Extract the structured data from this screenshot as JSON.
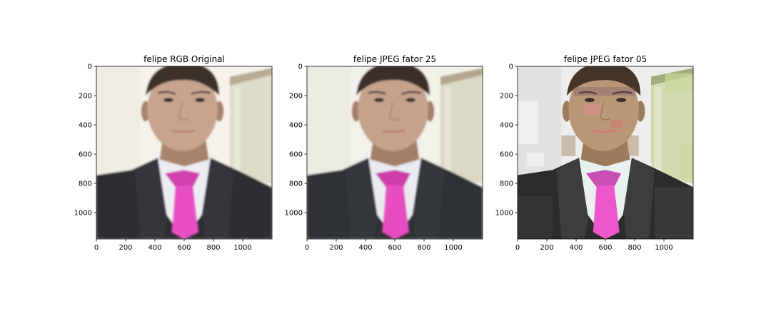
{
  "figure": {
    "background": "#ffffff"
  },
  "chart_data": [
    {
      "type": "image",
      "title": "felipe RGB Original",
      "xlim": [
        0,
        1200
      ],
      "ylim": [
        1180,
        0
      ],
      "xticks": [
        0,
        200,
        400,
        600,
        800,
        1000
      ],
      "yticks": [
        0,
        200,
        400,
        600,
        800,
        1000
      ],
      "variant": "original"
    },
    {
      "type": "image",
      "title": "felipe JPEG fator 25",
      "xlim": [
        0,
        1200
      ],
      "ylim": [
        1180,
        0
      ],
      "xticks": [
        0,
        200,
        400,
        600,
        800,
        1000
      ],
      "yticks": [
        0,
        200,
        400,
        600,
        800,
        1000
      ],
      "variant": "jpeg25"
    },
    {
      "type": "image",
      "title": "felipe JPEG fator 05",
      "xlim": [
        0,
        1200
      ],
      "ylim": [
        1180,
        0
      ],
      "xticks": [
        0,
        200,
        400,
        600,
        800,
        1000
      ],
      "yticks": [
        0,
        200,
        400,
        600,
        800,
        1000
      ],
      "variant": "jpeg05"
    }
  ]
}
